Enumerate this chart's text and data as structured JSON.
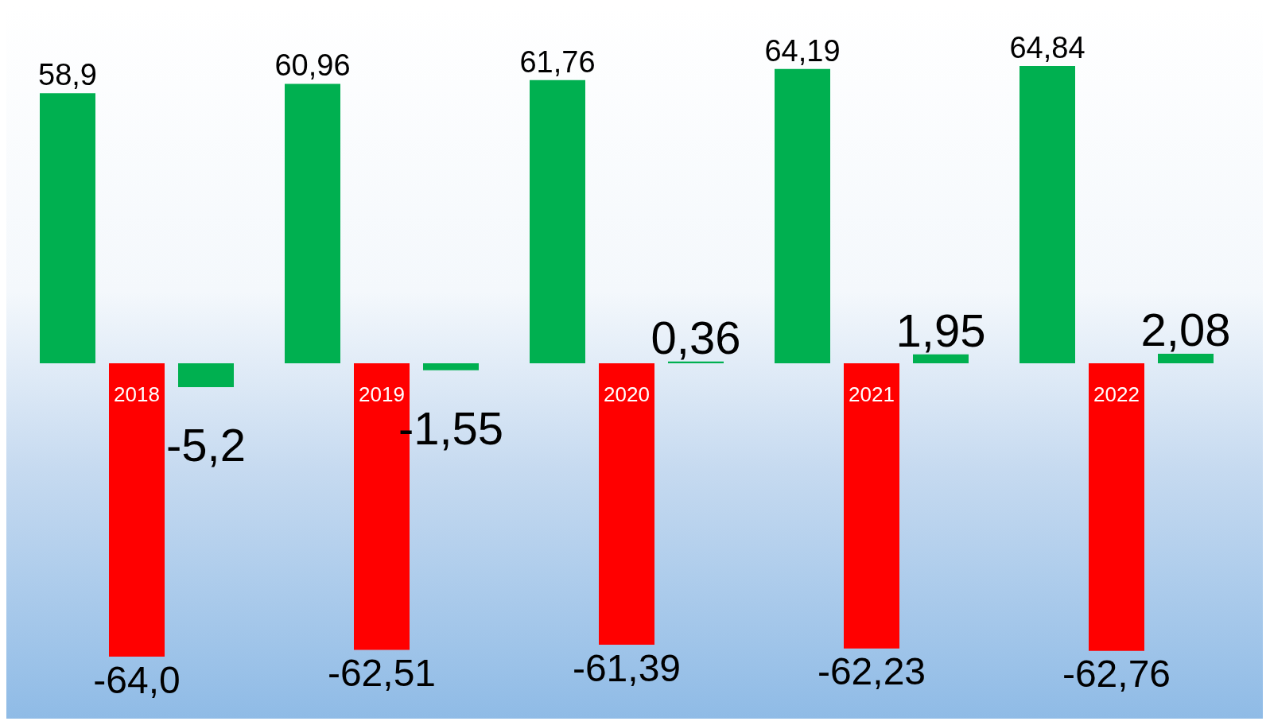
{
  "chart_data": {
    "type": "bar",
    "categories": [
      "2018",
      "2019",
      "2020",
      "2021",
      "2022"
    ],
    "data_labels": true,
    "series": [
      {
        "color": "#00b050",
        "values": [
          58.9,
          60.96,
          61.76,
          64.19,
          64.84
        ],
        "value_labels": [
          "58,9",
          "60,96",
          "61,76",
          "64,19",
          "64,84"
        ]
      },
      {
        "color": "#ff0000",
        "values": [
          -64.0,
          -62.51,
          -61.39,
          -62.23,
          -62.76
        ],
        "value_labels": [
          "-64,0",
          "-62,51",
          "-61,39",
          "-62,23",
          "-62,76"
        ]
      },
      {
        "color": "#00b050",
        "values": [
          -5.2,
          -1.55,
          0.36,
          1.95,
          2.08
        ],
        "value_labels": [
          "-5,2",
          "-1,55",
          "0,36",
          "1,95",
          "2,08"
        ]
      }
    ]
  }
}
